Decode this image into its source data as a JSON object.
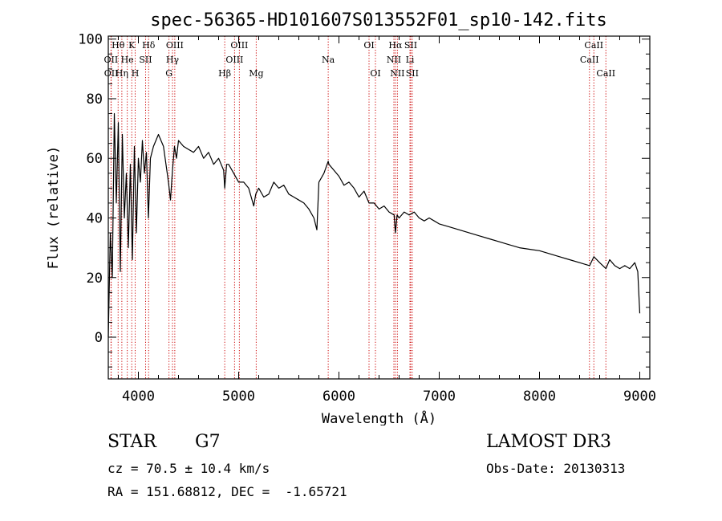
{
  "chart_data": {
    "type": "line",
    "title": "spec-56365-HD101607S013552F01_sp10-142.fits",
    "xlabel": "Wavelength (Å)",
    "ylabel": "Flux (relative)",
    "xlim": [
      3700,
      9100
    ],
    "ylim": [
      -14,
      101
    ],
    "xticks": [
      4000,
      5000,
      6000,
      7000,
      8000,
      9000
    ],
    "yticks": [
      0,
      20,
      40,
      60,
      80,
      100
    ],
    "grid": false,
    "series": [
      {
        "name": "flux",
        "x": [
          3700,
          3720,
          3740,
          3760,
          3780,
          3800,
          3820,
          3840,
          3860,
          3880,
          3900,
          3920,
          3940,
          3960,
          3980,
          4000,
          4020,
          4040,
          4060,
          4080,
          4100,
          4120,
          4150,
          4200,
          4250,
          4300,
          4320,
          4340,
          4360,
          4380,
          4400,
          4450,
          4500,
          4550,
          4600,
          4650,
          4700,
          4750,
          4800,
          4850,
          4861,
          4880,
          4900,
          4950,
          5000,
          5050,
          5100,
          5150,
          5170,
          5200,
          5250,
          5300,
          5350,
          5400,
          5450,
          5500,
          5550,
          5600,
          5650,
          5700,
          5750,
          5780,
          5800,
          5850,
          5893,
          5900,
          5950,
          6000,
          6050,
          6100,
          6150,
          6200,
          6250,
          6300,
          6350,
          6400,
          6450,
          6500,
          6550,
          6563,
          6580,
          6600,
          6650,
          6700,
          6750,
          6800,
          6850,
          6900,
          6950,
          7000,
          7100,
          7200,
          7300,
          7400,
          7500,
          7600,
          7700,
          7800,
          7900,
          8000,
          8100,
          8200,
          8300,
          8400,
          8500,
          8542,
          8600,
          8662,
          8700,
          8750,
          8800,
          8850,
          8900,
          8950,
          8980,
          9000
        ],
        "values": [
          0,
          35,
          20,
          75,
          45,
          72,
          22,
          68,
          40,
          55,
          30,
          58,
          26,
          64,
          35,
          60,
          52,
          66,
          55,
          62,
          40,
          60,
          64,
          68,
          64,
          52,
          46,
          56,
          64,
          60,
          66,
          64,
          63,
          62,
          64,
          60,
          62,
          58,
          60,
          56,
          50,
          58,
          58,
          55,
          52,
          52,
          50,
          44,
          48,
          50,
          47,
          48,
          52,
          50,
          51,
          48,
          47,
          46,
          45,
          43,
          40,
          36,
          52,
          55,
          59,
          58,
          56,
          54,
          51,
          52,
          50,
          47,
          49,
          45,
          45,
          43,
          44,
          42,
          41,
          35,
          41,
          40,
          42,
          41,
          42,
          40,
          39,
          40,
          39,
          38,
          37,
          36,
          35,
          34,
          33,
          32,
          31,
          30,
          29.5,
          29,
          28,
          27,
          26,
          25,
          24,
          27,
          25,
          23,
          26,
          24,
          23,
          24,
          23,
          25,
          22,
          8
        ]
      }
    ],
    "lines": [
      {
        "label": "Hθ",
        "x": 3798,
        "row": 1
      },
      {
        "label": "K",
        "x": 3934,
        "row": 1
      },
      {
        "label": "Hδ",
        "x": 4102,
        "row": 1
      },
      {
        "label": "OIII",
        "x": 4363,
        "row": 1
      },
      {
        "label": "OIII",
        "x": 5007,
        "row": 1
      },
      {
        "label": "OI",
        "x": 6300,
        "row": 1
      },
      {
        "label": "Hα",
        "x": 6563,
        "row": 1
      },
      {
        "label": "SII",
        "x": 6716,
        "row": 1
      },
      {
        "label": "CaII",
        "x": 8542,
        "row": 1
      },
      {
        "label": "OII",
        "x": 3727,
        "row": 2
      },
      {
        "label": "He",
        "x": 3889,
        "row": 2
      },
      {
        "label": "SII",
        "x": 4072,
        "row": 2
      },
      {
        "label": "Hγ",
        "x": 4340,
        "row": 2
      },
      {
        "label": "OIII",
        "x": 4959,
        "row": 2
      },
      {
        "label": "Na",
        "x": 5893,
        "row": 2
      },
      {
        "label": "NII",
        "x": 6548,
        "row": 2
      },
      {
        "label": "Li",
        "x": 6708,
        "row": 2
      },
      {
        "label": "CaII",
        "x": 8498,
        "row": 2
      },
      {
        "label": "OII",
        "x": 3729,
        "row": 3
      },
      {
        "label": "Hη",
        "x": 3835,
        "row": 3
      },
      {
        "label": "H",
        "x": 3968,
        "row": 3
      },
      {
        "label": "G",
        "x": 4305,
        "row": 3
      },
      {
        "label": "Hβ",
        "x": 4861,
        "row": 3
      },
      {
        "label": "Mg",
        "x": 5175,
        "row": 3
      },
      {
        "label": "OI",
        "x": 6364,
        "row": 3
      },
      {
        "label": "NII",
        "x": 6583,
        "row": 3
      },
      {
        "label": "SII",
        "x": 6731,
        "row": 3
      },
      {
        "label": "CaII",
        "x": 8662,
        "row": 3
      }
    ]
  },
  "info": {
    "class": "STAR",
    "subclass": "G7",
    "survey": "LAMOST DR3",
    "cz": "cz = 70.5 ± 10.4 km/s",
    "obs_date": "Obs-Date: 20130313",
    "coords": "RA = 151.68812, DEC =  -1.65721"
  },
  "colors": {
    "line": "#000000",
    "marker": "#cc0000"
  }
}
